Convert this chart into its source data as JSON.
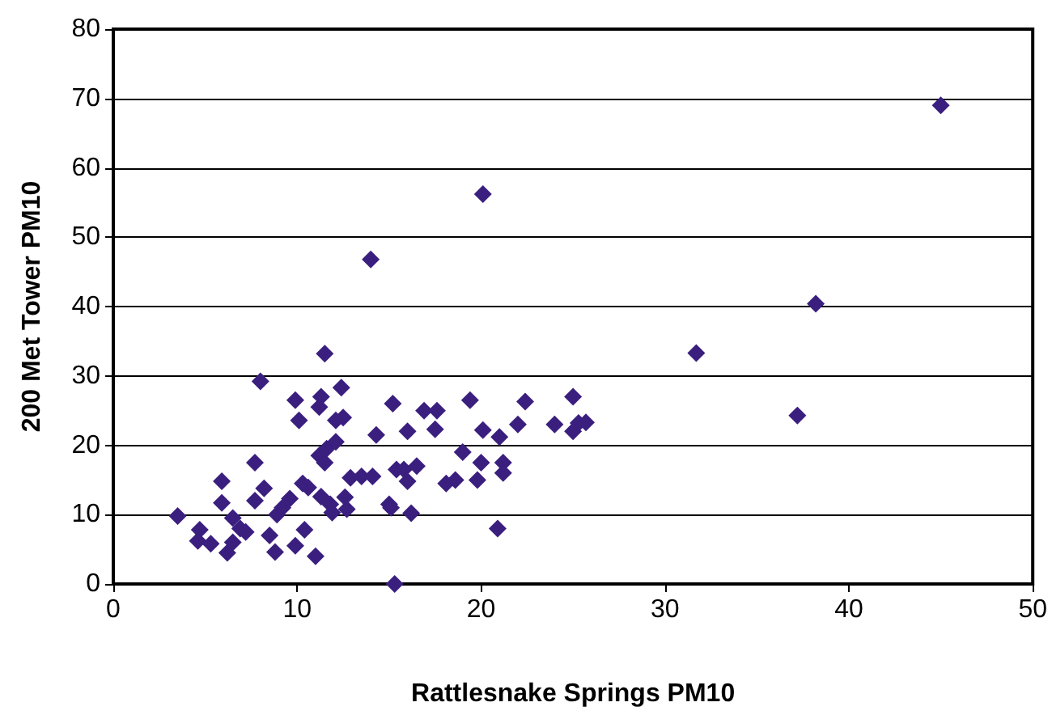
{
  "chart_data": {
    "type": "scatter",
    "xlabel": "Rattlesnake Springs PM10",
    "ylabel": "200 Met Tower PM10",
    "x": [
      3.5,
      4.7,
      4.6,
      5.3,
      5.9,
      5.9,
      6.2,
      6.5,
      6.5,
      6.9,
      7.2,
      7.7,
      7.7,
      8,
      8.2,
      8.5,
      8.8,
      8.9,
      9.2,
      9.6,
      9.9,
      9.9,
      10.1,
      10.3,
      10.4,
      10.6,
      11,
      11.2,
      11.3,
      11.2,
      11.3,
      11.5,
      11.5,
      11.6,
      11.8,
      11.9,
      12.1,
      12.1,
      12.4,
      12.5,
      12.6,
      12.7,
      12.9,
      13.5,
      14,
      14.1,
      14.3,
      15,
      15.1,
      15.2,
      15.3,
      15.4,
      15.8,
      16,
      16,
      16.2,
      16.5,
      16.9,
      17.5,
      17.6,
      18.1,
      18.6,
      19,
      19.4,
      19.8,
      20,
      20.1,
      20.1,
      20.9,
      21,
      21.2,
      21.2,
      22,
      22.4,
      24,
      25,
      25,
      25.3,
      25.7,
      31.7,
      37.2,
      38.2,
      45
    ],
    "values": [
      9.8,
      7.8,
      6.2,
      5.8,
      14.8,
      11.7,
      4.5,
      6,
      9.5,
      8,
      7.5,
      17.5,
      12,
      29.2,
      13.8,
      7,
      4.6,
      10,
      11,
      12.3,
      26.5,
      5.5,
      23.6,
      14.5,
      7.8,
      13.9,
      4,
      25.5,
      27,
      18.5,
      12.6,
      17.5,
      33.2,
      19.5,
      11.5,
      10.3,
      23.6,
      20.5,
      28.3,
      24,
      12.5,
      10.8,
      15.3,
      15.5,
      46.8,
      15.5,
      21.5,
      11.5,
      11,
      26,
      0,
      16.5,
      16.5,
      14.8,
      22,
      10.2,
      17,
      25,
      22.3,
      25,
      14.5,
      15,
      19,
      26.5,
      15,
      17.5,
      22.2,
      56.2,
      8,
      21.2,
      17.5,
      16,
      23,
      26.3,
      23,
      27,
      22,
      23.2,
      23.3,
      33.3,
      24.3,
      40.4,
      69
    ],
    "color": "#3b1f7f",
    "marker": "diamond",
    "xlim": [
      0,
      50
    ],
    "xticks": [
      0,
      10,
      20,
      30,
      40,
      50
    ],
    "ylim": [
      0,
      80
    ],
    "yticks": [
      0,
      10,
      20,
      30,
      40,
      50,
      60,
      70,
      80
    ],
    "grid": "y"
  }
}
